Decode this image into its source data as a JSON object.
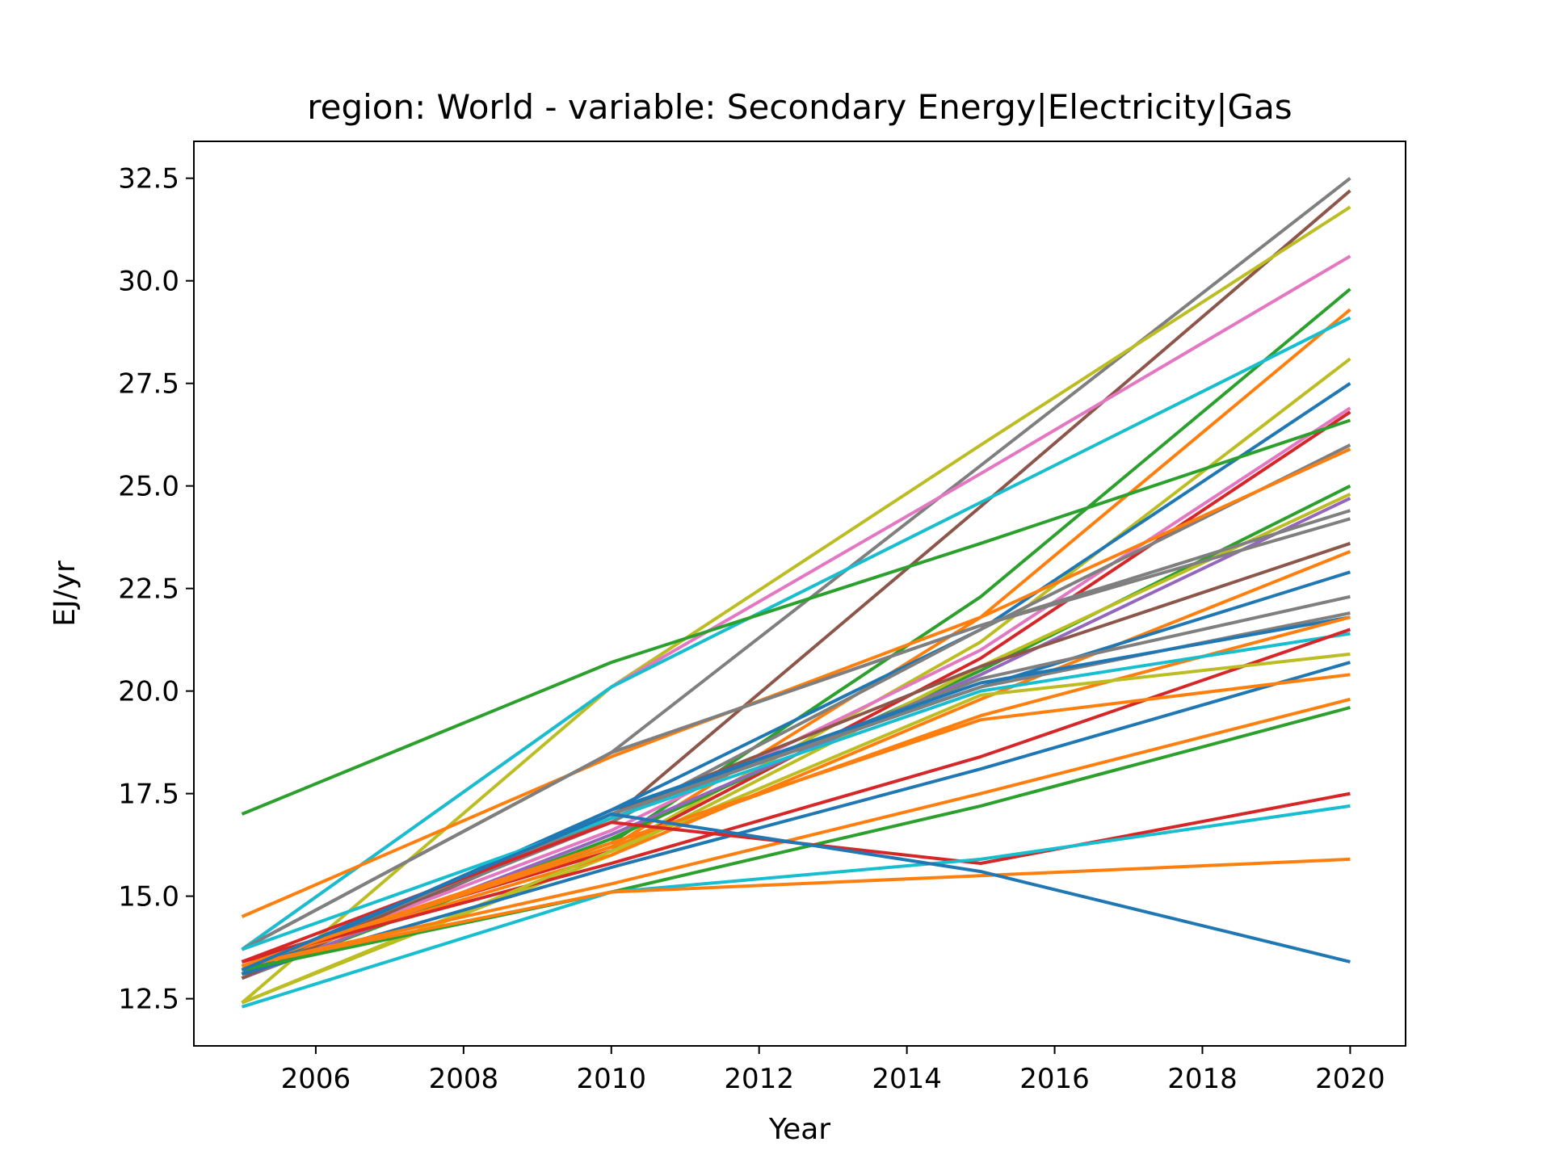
{
  "chart_data": {
    "type": "line",
    "title": "region: World - variable: Secondary Energy|Electricity|Gas",
    "xlabel": "Year",
    "ylabel": "EJ/yr",
    "xlim": [
      2004.35,
      2020.75
    ],
    "ylim": [
      11.35,
      33.4
    ],
    "xticks": [
      2006,
      2008,
      2010,
      2012,
      2014,
      2016,
      2018,
      2020
    ],
    "xtick_labels": [
      "2006",
      "2008",
      "2010",
      "2012",
      "2014",
      "2016",
      "2018",
      "2020"
    ],
    "yticks": [
      12.5,
      15.0,
      17.5,
      20.0,
      22.5,
      25.0,
      27.5,
      30.0,
      32.5
    ],
    "ytick_labels": [
      "12.5",
      "15.0",
      "17.5",
      "20.0",
      "22.5",
      "25.0",
      "27.5",
      "30.0",
      "32.5"
    ],
    "grid": false,
    "legend": "none",
    "x": [
      2005,
      2010,
      2015,
      2020
    ],
    "series": [
      {
        "color": "#7f7f7f",
        "values": [
          13.7,
          18.5,
          25.5,
          32.5
        ]
      },
      {
        "color": "#8c564b",
        "values": [
          13.0,
          16.9,
          24.5,
          32.2
        ]
      },
      {
        "color": "#bcbd22",
        "values": [
          12.4,
          20.1,
          26.0,
          31.8
        ]
      },
      {
        "color": "#e377c2",
        "values": [
          13.7,
          20.1,
          25.3,
          30.6
        ]
      },
      {
        "color": "#2ca02c",
        "values": [
          13.2,
          16.3,
          22.3,
          29.8
        ]
      },
      {
        "color": "#ff7f0e",
        "values": [
          13.3,
          16.2,
          21.8,
          29.3
        ]
      },
      {
        "color": "#17becf",
        "values": [
          13.7,
          20.1,
          24.6,
          29.1
        ]
      },
      {
        "color": "#bcbd22",
        "values": [
          12.4,
          16.1,
          21.2,
          28.1
        ]
      },
      {
        "color": "#1f77b4",
        "values": [
          13.1,
          17.1,
          21.5,
          27.5
        ]
      },
      {
        "color": "#e377c2",
        "values": [
          13.2,
          16.6,
          21.0,
          26.9
        ]
      },
      {
        "color": "#d62728",
        "values": [
          13.4,
          16.1,
          20.8,
          26.8
        ]
      },
      {
        "color": "#2ca02c",
        "values": [
          17.0,
          20.7,
          23.6,
          26.6
        ]
      },
      {
        "color": "#7f7f7f",
        "values": [
          13.2,
          16.8,
          21.5,
          26.0
        ]
      },
      {
        "color": "#ff7f0e",
        "values": [
          14.5,
          18.4,
          21.8,
          25.9
        ]
      },
      {
        "color": "#2ca02c",
        "values": [
          13.0,
          16.4,
          20.5,
          25.0
        ]
      },
      {
        "color": "#bcbd22",
        "values": [
          12.4,
          16.0,
          20.6,
          24.8
        ]
      },
      {
        "color": "#9467bd",
        "values": [
          13.0,
          16.5,
          20.4,
          24.7
        ]
      },
      {
        "color": "#7f7f7f",
        "values": [
          13.7,
          18.5,
          21.6,
          24.4
        ]
      },
      {
        "color": "#7f7f7f",
        "values": [
          13.7,
          18.5,
          21.6,
          24.2
        ]
      },
      {
        "color": "#8c564b",
        "values": [
          13.0,
          17.0,
          20.6,
          23.6
        ]
      },
      {
        "color": "#ff7f0e",
        "values": [
          13.3,
          16.0,
          19.8,
          23.4
        ]
      },
      {
        "color": "#1f77b4",
        "values": [
          13.1,
          17.1,
          20.1,
          22.9
        ]
      },
      {
        "color": "#7f7f7f",
        "values": [
          13.2,
          16.9,
          20.3,
          22.3
        ]
      },
      {
        "color": "#7f7f7f",
        "values": [
          13.2,
          17.0,
          20.1,
          21.9
        ]
      },
      {
        "color": "#1f77b4",
        "values": [
          13.1,
          17.1,
          20.2,
          21.8
        ]
      },
      {
        "color": "#ff7f0e",
        "values": [
          13.3,
          16.2,
          19.4,
          21.8
        ]
      },
      {
        "color": "#17becf",
        "values": [
          13.7,
          16.9,
          20.0,
          21.4
        ]
      },
      {
        "color": "#d62728",
        "values": [
          13.4,
          15.8,
          18.4,
          21.5
        ]
      },
      {
        "color": "#bcbd22",
        "values": [
          12.4,
          16.1,
          19.9,
          20.9
        ]
      },
      {
        "color": "#1f77b4",
        "values": [
          13.1,
          15.7,
          18.1,
          20.7
        ]
      },
      {
        "color": "#ff7f0e",
        "values": [
          13.3,
          16.3,
          19.3,
          20.4
        ]
      },
      {
        "color": "#ff7f0e",
        "values": [
          13.3,
          15.3,
          17.5,
          19.8
        ]
      },
      {
        "color": "#2ca02c",
        "values": [
          13.2,
          15.1,
          17.2,
          19.6
        ]
      },
      {
        "color": "#d62728",
        "values": [
          13.4,
          16.8,
          15.8,
          17.5
        ]
      },
      {
        "color": "#17becf",
        "values": [
          12.3,
          15.1,
          15.9,
          17.2
        ]
      },
      {
        "color": "#ff7f0e",
        "values": [
          13.3,
          15.1,
          15.5,
          15.9
        ]
      },
      {
        "color": "#1f77b4",
        "values": [
          13.2,
          17.0,
          15.6,
          13.4
        ]
      }
    ]
  }
}
